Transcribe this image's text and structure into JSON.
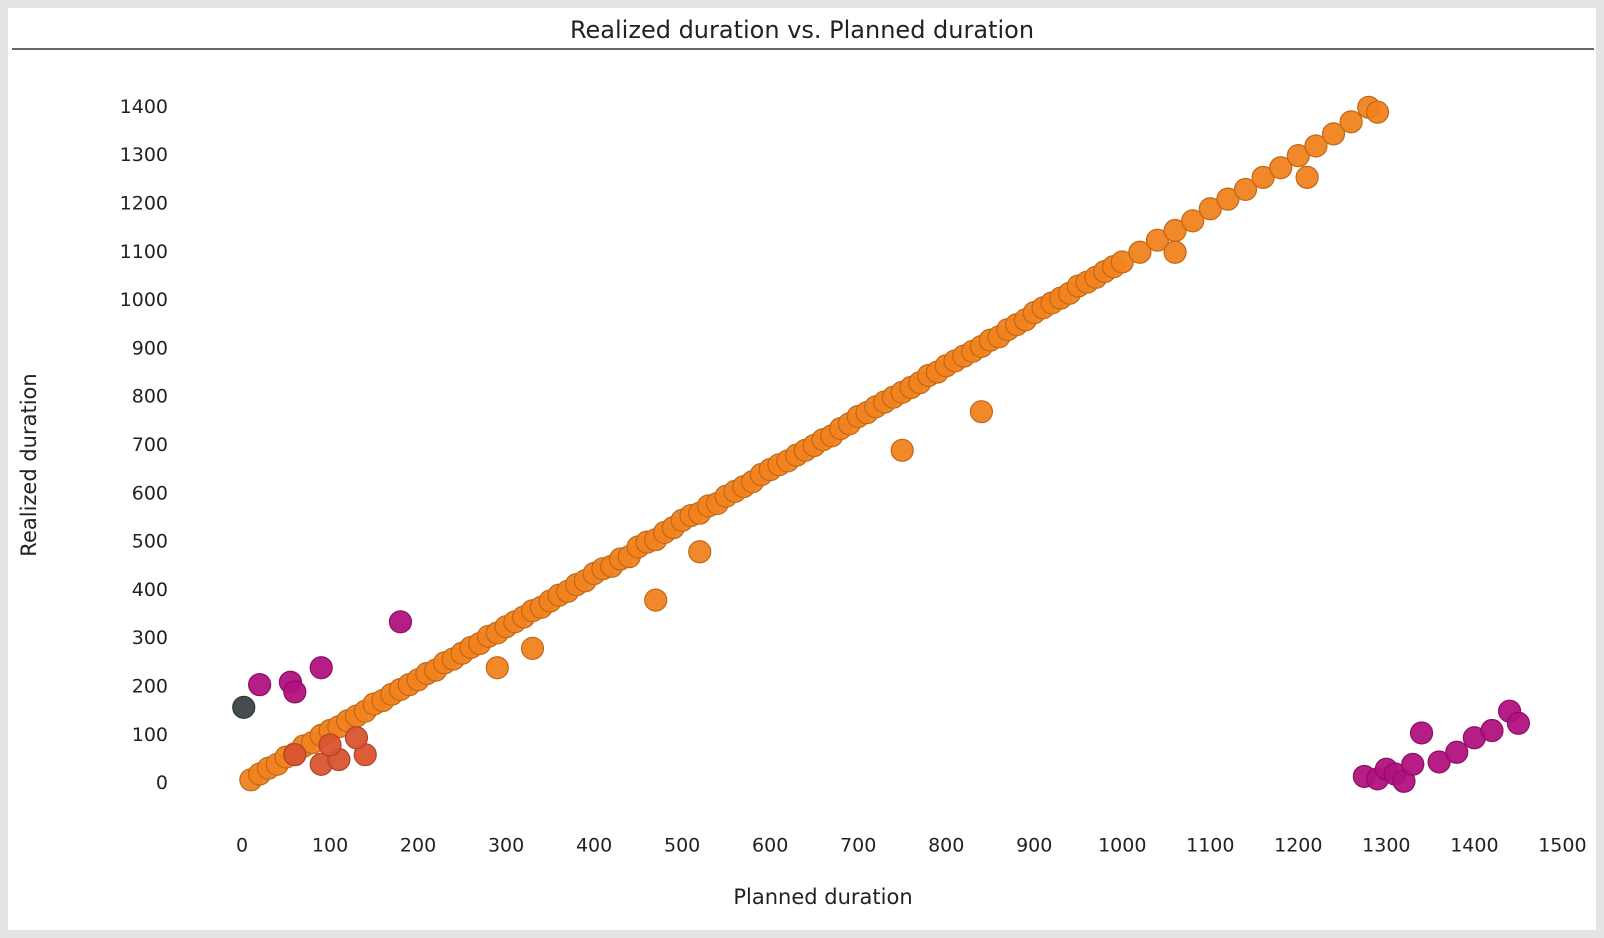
{
  "chart_data": {
    "type": "scatter",
    "title": "Realized duration vs. Planned duration",
    "x_label": "Planned duration",
    "y_label": "Realized duration",
    "xlim": [
      -50,
      1520
    ],
    "ylim": [
      -40,
      1440
    ],
    "xticks": [
      0,
      100,
      200,
      300,
      400,
      500,
      600,
      700,
      800,
      900,
      1000,
      1100,
      1200,
      1300,
      1400,
      1500
    ],
    "yticks": [
      0,
      100,
      200,
      300,
      400,
      500,
      600,
      700,
      800,
      900,
      1000,
      1100,
      1200,
      1300,
      1400
    ],
    "grid": false,
    "series": [
      {
        "color": "#f0821e",
        "x": [
          10,
          20,
          30,
          40,
          50,
          60,
          70,
          80,
          90,
          100,
          110,
          120,
          130,
          140,
          150,
          160,
          170,
          180,
          190,
          200,
          210,
          220,
          230,
          240,
          250,
          260,
          270,
          280,
          290,
          300,
          310,
          320,
          330,
          340,
          350,
          360,
          370,
          380,
          390,
          400,
          410,
          420,
          430,
          440,
          450,
          460,
          470,
          480,
          490,
          500,
          510,
          520,
          530,
          540,
          550,
          560,
          570,
          580,
          590,
          600,
          610,
          620,
          630,
          640,
          650,
          660,
          670,
          680,
          690,
          700,
          710,
          720,
          730,
          740,
          750,
          760,
          770,
          780,
          790,
          800,
          810,
          820,
          830,
          840,
          850,
          860,
          870,
          880,
          890,
          900,
          910,
          920,
          930,
          940,
          950,
          960,
          970,
          980,
          990,
          1000,
          1020,
          1040,
          1060,
          1080,
          1100,
          1120,
          1140,
          1160,
          1180,
          1200,
          1220,
          1240,
          1260,
          1280,
          1290,
          470,
          840,
          750,
          1060,
          1210,
          330,
          520,
          290
        ],
        "values": [
          8,
          20,
          32,
          40,
          55,
          62,
          78,
          85,
          100,
          110,
          118,
          130,
          140,
          150,
          165,
          172,
          185,
          195,
          205,
          215,
          228,
          235,
          250,
          258,
          270,
          282,
          290,
          305,
          312,
          325,
          335,
          345,
          358,
          365,
          378,
          390,
          398,
          412,
          420,
          435,
          445,
          450,
          465,
          470,
          490,
          500,
          505,
          520,
          530,
          545,
          555,
          560,
          575,
          580,
          595,
          605,
          615,
          625,
          640,
          650,
          660,
          668,
          680,
          690,
          700,
          712,
          720,
          735,
          745,
          760,
          768,
          780,
          790,
          800,
          810,
          820,
          830,
          845,
          852,
          865,
          875,
          885,
          895,
          905,
          918,
          925,
          940,
          950,
          960,
          975,
          985,
          995,
          1005,
          1015,
          1030,
          1038,
          1048,
          1060,
          1070,
          1080,
          1100,
          1125,
          1145,
          1165,
          1190,
          1210,
          1230,
          1255,
          1275,
          1300,
          1320,
          1345,
          1370,
          1400,
          1390,
          380,
          770,
          690,
          1100,
          1255,
          280,
          480,
          240
        ]
      },
      {
        "color": "#d9542f",
        "x": [
          90,
          110,
          140,
          130,
          60,
          100
        ],
        "values": [
          40,
          50,
          60,
          95,
          60,
          80
        ]
      },
      {
        "color": "#b0127e",
        "x": [
          20,
          55,
          60,
          90,
          180,
          1275,
          1290,
          1300,
          1310,
          1320,
          1330,
          1340,
          1360,
          1380,
          1400,
          1420,
          1440,
          1450
        ],
        "values": [
          205,
          210,
          190,
          240,
          335,
          15,
          10,
          30,
          20,
          5,
          40,
          105,
          45,
          65,
          95,
          110,
          150,
          125
        ]
      },
      {
        "color": "#3b4246",
        "x": [
          2
        ],
        "values": [
          158
        ]
      }
    ]
  }
}
